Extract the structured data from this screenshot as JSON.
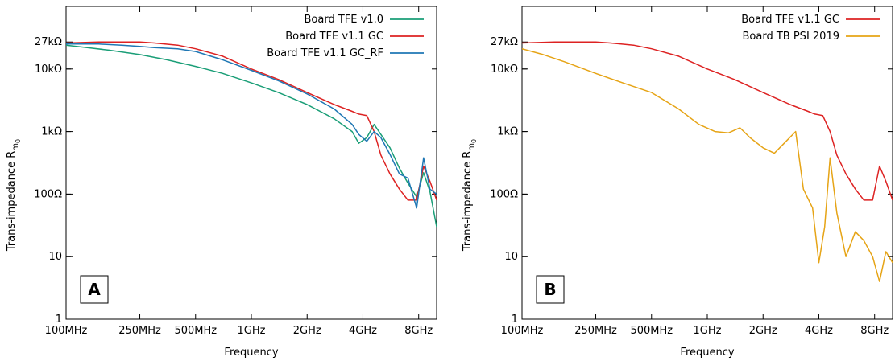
{
  "chart_data": [
    {
      "type": "line",
      "panel_label": "A",
      "xlabel": "Frequency",
      "ylabel": "Trans-impedance R",
      "ylabel_sub": "m",
      "ylabel_subsub": "0",
      "x_scale": "log",
      "y_scale": "log",
      "xlim": [
        "100MHz",
        "10GHz"
      ],
      "ylim": [
        1,
        100000
      ],
      "x_ticks": [
        {
          "value_mhz": 100,
          "label": "100MHz"
        },
        {
          "value_mhz": 250,
          "label": "250MHz"
        },
        {
          "value_mhz": 500,
          "label": "500MHz"
        },
        {
          "value_mhz": 1000,
          "label": "1GHz"
        },
        {
          "value_mhz": 2000,
          "label": "2GHz"
        },
        {
          "value_mhz": 4000,
          "label": "4GHz"
        },
        {
          "value_mhz": 8000,
          "label": "8GHz"
        }
      ],
      "y_ticks": [
        {
          "value_ohm": 1,
          "label": "1"
        },
        {
          "value_ohm": 10,
          "label": "10"
        },
        {
          "value_ohm": 100,
          "label": "100Ω"
        },
        {
          "value_ohm": 1000,
          "label": "1kΩ"
        },
        {
          "value_ohm": 10000,
          "label": "10kΩ"
        },
        {
          "value_ohm": 27000,
          "label": "27kΩ"
        }
      ],
      "legend_position": "top-right",
      "series": [
        {
          "name": "Board TFE v1.0",
          "color": "#1a9e77",
          "x_mhz": [
            100,
            130,
            170,
            250,
            350,
            500,
            700,
            1000,
            1400,
            2000,
            2800,
            3500,
            3800,
            4200,
            4600,
            5000,
            5600,
            6300,
            7000,
            7800,
            8500,
            9200,
            10000
          ],
          "y_ohm": [
            24000,
            22000,
            20000,
            17000,
            14000,
            11000,
            8500,
            6000,
            4200,
            2700,
            1600,
            1000,
            650,
            800,
            1300,
            900,
            550,
            260,
            150,
            90,
            220,
            110,
            30
          ]
        },
        {
          "name": "Board TFE v1.1 GC",
          "color": "#dd2222",
          "x_mhz": [
            100,
            150,
            200,
            250,
            300,
            400,
            500,
            700,
            1000,
            1400,
            2000,
            2800,
            3500,
            3800,
            4200,
            4600,
            5000,
            5600,
            6300,
            7000,
            7800,
            8500,
            9200,
            10000
          ],
          "y_ohm": [
            26000,
            27000,
            27000,
            27000,
            26000,
            24000,
            21000,
            16000,
            10000,
            6800,
            4200,
            2700,
            2100,
            1900,
            1800,
            1000,
            420,
            210,
            120,
            80,
            80,
            280,
            160,
            80
          ]
        },
        {
          "name": "Board TFE v1.1 GC_RF",
          "color": "#1f77b4",
          "x_mhz": [
            100,
            150,
            200,
            250,
            300,
            400,
            500,
            700,
            1000,
            1400,
            2000,
            2800,
            3500,
            3800,
            4200,
            4600,
            5000,
            5600,
            6300,
            7000,
            7800,
            8500,
            9200,
            10000
          ],
          "y_ohm": [
            25000,
            25000,
            24000,
            23000,
            22000,
            21000,
            19000,
            14000,
            9500,
            6500,
            4000,
            2300,
            1300,
            900,
            700,
            1000,
            800,
            430,
            210,
            180,
            60,
            380,
            120,
            100
          ]
        }
      ]
    },
    {
      "type": "line",
      "panel_label": "B",
      "xlabel": "Frequency",
      "ylabel": "Trans-impedance R",
      "ylabel_sub": "m",
      "ylabel_subsub": "0",
      "x_scale": "log",
      "y_scale": "log",
      "xlim": [
        "100MHz",
        "10GHz"
      ],
      "ylim": [
        1,
        100000
      ],
      "x_ticks": [
        {
          "value_mhz": 100,
          "label": "100MHz"
        },
        {
          "value_mhz": 250,
          "label": "250MHz"
        },
        {
          "value_mhz": 500,
          "label": "500MHz"
        },
        {
          "value_mhz": 1000,
          "label": "1GHz"
        },
        {
          "value_mhz": 2000,
          "label": "2GHz"
        },
        {
          "value_mhz": 4000,
          "label": "4GHz"
        },
        {
          "value_mhz": 8000,
          "label": "8GHz"
        }
      ],
      "y_ticks": [
        {
          "value_ohm": 1,
          "label": "1"
        },
        {
          "value_ohm": 10,
          "label": "10"
        },
        {
          "value_ohm": 100,
          "label": "100Ω"
        },
        {
          "value_ohm": 1000,
          "label": "1kΩ"
        },
        {
          "value_ohm": 10000,
          "label": "10kΩ"
        },
        {
          "value_ohm": 27000,
          "label": "27kΩ"
        }
      ],
      "legend_position": "top-right",
      "series": [
        {
          "name": "Board TFE v1.1 GC",
          "color": "#dd2222",
          "x_mhz": [
            100,
            150,
            200,
            250,
            300,
            400,
            500,
            700,
            1000,
            1400,
            2000,
            2800,
            3500,
            3800,
            4200,
            4600,
            5000,
            5600,
            6300,
            7000,
            7800,
            8500,
            9200,
            10000
          ],
          "y_ohm": [
            26000,
            27000,
            27000,
            27000,
            26000,
            24000,
            21000,
            16000,
            10000,
            6800,
            4200,
            2700,
            2100,
            1900,
            1800,
            1000,
            420,
            210,
            120,
            80,
            80,
            280,
            160,
            80
          ]
        },
        {
          "name": "Board TB PSI 2019",
          "color": "#e6a416",
          "x_mhz": [
            100,
            130,
            170,
            250,
            350,
            500,
            700,
            900,
            1100,
            1300,
            1500,
            1700,
            2000,
            2300,
            2600,
            3000,
            3300,
            3700,
            4000,
            4300,
            4600,
            5000,
            5600,
            6300,
            7000,
            7800,
            8500,
            9200,
            10000
          ],
          "y_ohm": [
            21000,
            17000,
            13000,
            8500,
            6000,
            4200,
            2300,
            1300,
            1000,
            950,
            1150,
            800,
            550,
            450,
            650,
            1000,
            120,
            60,
            8,
            30,
            380,
            50,
            10,
            25,
            18,
            10,
            4,
            12,
            8
          ]
        }
      ]
    }
  ]
}
